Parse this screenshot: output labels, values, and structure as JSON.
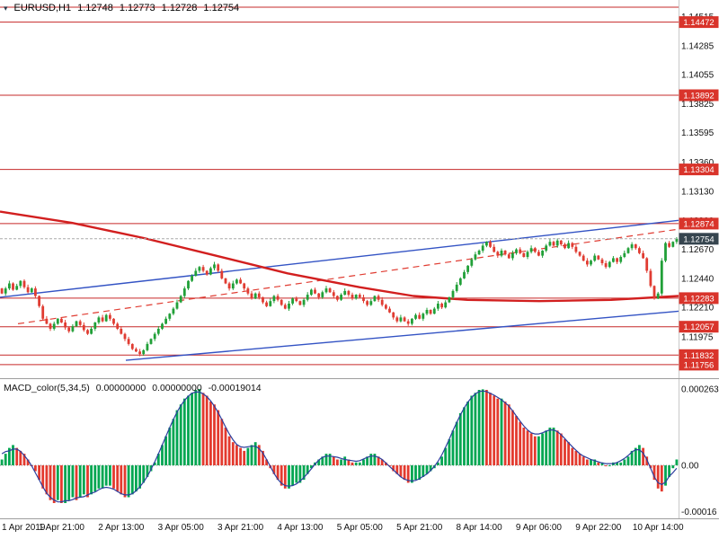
{
  "chart": {
    "title_symbol": "EURUSD,H1",
    "symbol_icon": "▾",
    "ohlc": {
      "open": "1.12748",
      "high": "1.12773",
      "low": "1.12728",
      "close": "1.12754"
    },
    "current_price_label": "1.12754"
  },
  "indicator": {
    "name": "MACD_color(5,34,5)",
    "value1": "0.00000000",
    "value2": "0.00000000",
    "value3": "-0.00019014"
  },
  "colors": {
    "candle_up": "#21a038",
    "candle_down": "#e03c32",
    "ma_line": "#d21f1f",
    "channel_line": "#3353c4",
    "dashed_trend": "#e03c32",
    "level_line": "#c62828",
    "level_badge": "#d9342b",
    "current_badge": "#36454f",
    "current_line": "#aaaaaa",
    "macd_up": "#00a651",
    "macd_down": "#e33a2e",
    "macd_signal": "#2c3e9e",
    "axis_text": "#111111",
    "separator": "#9e9e9e"
  },
  "chart_data": [
    {
      "type": "candlestick",
      "title": "EURUSD,H1",
      "ylim": [
        1.1167,
        1.1459
      ],
      "y_ticks": [
        "1.14515",
        "1.14285",
        "1.14055",
        "1.13825",
        "1.13595",
        "1.13360",
        "1.13130",
        "1.12900",
        "1.12670",
        "1.12440",
        "1.12210",
        "1.11975",
        "1.11745"
      ],
      "x_axis": [
        {
          "label": "1 Apr 2019",
          "index": 0
        },
        {
          "label": "1 Apr 21:00",
          "index": 16
        },
        {
          "label": "2 Apr 13:00",
          "index": 32
        },
        {
          "label": "3 Apr 05:00",
          "index": 48
        },
        {
          "label": "3 Apr 21:00",
          "index": 64
        },
        {
          "label": "4 Apr 13:00",
          "index": 80
        },
        {
          "label": "5 Apr 05:00",
          "index": 96
        },
        {
          "label": "5 Apr 21:00",
          "index": 112
        },
        {
          "label": "8 Apr 14:00",
          "index": 128
        },
        {
          "label": "9 Apr 06:00",
          "index": 144
        },
        {
          "label": "9 Apr 22:00",
          "index": 160
        },
        {
          "label": "10 Apr 14:00",
          "index": 176
        }
      ],
      "open_first": 1.1236,
      "closes": [
        1.1232,
        1.1236,
        1.124,
        1.1235,
        1.1238,
        1.1242,
        1.1237,
        1.1233,
        1.1236,
        1.123,
        1.1222,
        1.1212,
        1.1208,
        1.1204,
        1.1208,
        1.1212,
        1.1209,
        1.1205,
        1.1202,
        1.1206,
        1.121,
        1.1207,
        1.1203,
        1.12,
        1.1204,
        1.1209,
        1.1213,
        1.121,
        1.1215,
        1.1212,
        1.1208,
        1.1204,
        1.12,
        1.1196,
        1.1192,
        1.1188,
        1.1186,
        1.1184,
        1.1187,
        1.1192,
        1.1196,
        1.12,
        1.1204,
        1.1208,
        1.1212,
        1.1216,
        1.122,
        1.1225,
        1.123,
        1.1236,
        1.1242,
        1.1246,
        1.125,
        1.1253,
        1.125,
        1.1247,
        1.1252,
        1.1255,
        1.125,
        1.1244,
        1.124,
        1.1236,
        1.124,
        1.1243,
        1.124,
        1.1236,
        1.1232,
        1.1228,
        1.1232,
        1.1229,
        1.1225,
        1.1222,
        1.1226,
        1.123,
        1.1227,
        1.1223,
        1.122,
        1.1224,
        1.1228,
        1.1226,
        1.1223,
        1.1227,
        1.1231,
        1.1235,
        1.1232,
        1.1229,
        1.1233,
        1.1236,
        1.1233,
        1.123,
        1.1227,
        1.1231,
        1.1234,
        1.1231,
        1.1228,
        1.1231,
        1.1229,
        1.1226,
        1.1223,
        1.1226,
        1.123,
        1.1227,
        1.1223,
        1.122,
        1.1217,
        1.1213,
        1.121,
        1.1213,
        1.121,
        1.1208,
        1.1212,
        1.1215,
        1.1212,
        1.1216,
        1.1219,
        1.1216,
        1.122,
        1.1224,
        1.1221,
        1.1225,
        1.1229,
        1.1234,
        1.1239,
        1.1244,
        1.1249,
        1.1254,
        1.1259,
        1.1263,
        1.1266,
        1.127,
        1.1273,
        1.1269,
        1.1265,
        1.1262,
        1.1266,
        1.1263,
        1.126,
        1.1264,
        1.1267,
        1.1264,
        1.1261,
        1.1265,
        1.1268,
        1.1265,
        1.1262,
        1.1266,
        1.127,
        1.1273,
        1.127,
        1.1274,
        1.1271,
        1.1268,
        1.1272,
        1.1269,
        1.1265,
        1.1262,
        1.1258,
        1.1255,
        1.1258,
        1.1262,
        1.1259,
        1.1256,
        1.1253,
        1.1257,
        1.126,
        1.1257,
        1.1261,
        1.1264,
        1.1268,
        1.1271,
        1.1268,
        1.1264,
        1.126,
        1.125,
        1.1238,
        1.1228,
        1.1232,
        1.1258,
        1.1272,
        1.1269,
        1.1273,
        1.12754
      ],
      "levels": [
        {
          "price": 1.14472,
          "label": "1.14472"
        },
        {
          "price": 1.13892,
          "label": "1.13892"
        },
        {
          "price": 1.13304,
          "label": "1.13304"
        },
        {
          "price": 1.12874,
          "label": "1.12874"
        },
        {
          "price": 1.12283,
          "label": "1.12283"
        },
        {
          "price": 1.12057,
          "label": "1.12057"
        },
        {
          "price": 1.11832,
          "label": "1.11832"
        },
        {
          "price": 1.11756,
          "label": "1.11756"
        }
      ],
      "unlabeled_levels": [
        1.1459
      ],
      "current_price": 1.12754,
      "overlays": {
        "ma_points": [
          [
            0,
            1.1297
          ],
          [
            80,
            1.1288
          ],
          [
            160,
            1.1276
          ],
          [
            240,
            1.1262
          ],
          [
            320,
            1.1248
          ],
          [
            400,
            1.1237
          ],
          [
            460,
            1.123
          ],
          [
            520,
            1.1227
          ],
          [
            600,
            1.1226
          ],
          [
            680,
            1.1227
          ],
          [
            755,
            1.123
          ]
        ],
        "channel_upper": [
          [
            0,
            1.1229
          ],
          [
            755,
            1.129
          ]
        ],
        "channel_lower": [
          [
            140,
            1.1179
          ],
          [
            755,
            1.1218
          ]
        ],
        "dashed_trend": [
          [
            20,
            1.1208
          ],
          [
            755,
            1.1283
          ]
        ]
      }
    },
    {
      "type": "bar",
      "title": "MACD_color(5,34,5)",
      "ylim": [
        -0.00018,
        0.000288
      ],
      "axis": [
        {
          "label": "0.00026327",
          "value": 0.00026327
        },
        {
          "label": "0.00",
          "value": 0
        },
        {
          "label": "-0.00016",
          "value": -0.00016
        }
      ],
      "values": [
        2e-05,
        4e-05,
        6e-05,
        7e-05,
        6e-05,
        5e-05,
        4e-05,
        2e-05,
        0.0,
        -2e-05,
        -5e-05,
        -8e-05,
        -0.0001,
        -0.00012,
        -0.00013,
        -0.00012,
        -0.00013,
        -0.00013,
        -0.00012,
        -0.00011,
        -0.00012,
        -0.00011,
        -0.0001,
        -0.00011,
        -0.0001,
        -9e-05,
        -8e-05,
        -8e-05,
        -7e-05,
        -7e-05,
        -8e-05,
        -9e-05,
        -0.0001,
        -0.00011,
        -0.00011,
        -0.0001,
        -9e-05,
        -8e-05,
        -6e-05,
        -4e-05,
        -2e-05,
        1e-05,
        4e-05,
        7e-05,
        0.0001,
        0.00013,
        0.00016,
        0.00019,
        0.00021,
        0.00023,
        0.00024,
        0.00025,
        0.00026,
        0.000263,
        0.00025,
        0.00024,
        0.00022,
        0.00021,
        0.00019,
        0.00016,
        0.00013,
        0.0001,
        8e-05,
        7e-05,
        6e-05,
        5e-05,
        6e-05,
        7e-05,
        8e-05,
        7e-05,
        5e-05,
        2e-05,
        -1e-05,
        -3e-05,
        -5e-05,
        -7e-05,
        -8e-05,
        -8e-05,
        -7e-05,
        -6e-05,
        -6e-05,
        -5e-05,
        -3e-05,
        -1e-05,
        1e-05,
        2e-05,
        3e-05,
        4e-05,
        4e-05,
        3e-05,
        2e-05,
        2e-05,
        3e-05,
        2e-05,
        1e-05,
        1e-05,
        1e-05,
        2e-05,
        3e-05,
        4e-05,
        4e-05,
        3e-05,
        2e-05,
        1e-05,
        0.0,
        -2e-05,
        -3e-05,
        -4e-05,
        -5e-05,
        -6e-05,
        -6e-05,
        -5e-05,
        -5e-05,
        -4e-05,
        -3e-05,
        -2e-05,
        -1e-05,
        1e-05,
        3e-05,
        6e-05,
        9e-05,
        0.00012,
        0.00015,
        0.00018,
        0.0002,
        0.00022,
        0.00024,
        0.00025,
        0.00026,
        0.000262,
        0.00026,
        0.00025,
        0.00024,
        0.00023,
        0.00023,
        0.00022,
        0.00021,
        0.00019,
        0.00017,
        0.00015,
        0.00013,
        0.00012,
        0.00011,
        0.0001,
        0.0001,
        0.00011,
        0.00012,
        0.00013,
        0.00013,
        0.00012,
        0.00011,
        9e-05,
        8e-05,
        6e-05,
        5e-05,
        4e-05,
        3e-05,
        2e-05,
        2e-05,
        2e-05,
        1e-05,
        1e-05,
        0.0,
        0.0,
        1e-05,
        1e-05,
        1e-05,
        2e-05,
        3e-05,
        5e-05,
        6e-05,
        7e-05,
        6e-05,
        3e-05,
        -1e-05,
        -5e-05,
        -8e-05,
        -9e-05,
        -7e-05,
        -4e-05,
        -1e-05,
        2e-05
      ]
    }
  ]
}
